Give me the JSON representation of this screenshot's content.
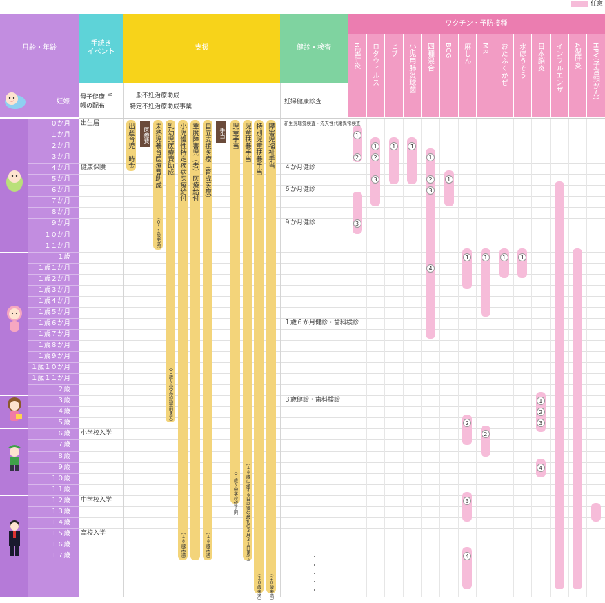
{
  "legend": {
    "label": "任意"
  },
  "headers": {
    "age": "月齢・年齢",
    "procedure": "手続き イベント",
    "support": "支援",
    "checkup": "健診・検査",
    "vaccine": "ワクチン・予防接種"
  },
  "vaccines": [
    "B型肝炎",
    "ロタウィルス",
    "ヒブ",
    "小児用肺炎球菌",
    "四種混合",
    "BCG",
    "麻しん",
    "MR",
    "おたふくかぜ",
    "水ぼうそう",
    "日本脳炎",
    "インフルエンザ",
    "A型肝炎",
    "HPV(子宮頸がん)"
  ],
  "pregnancy": {
    "label": "妊娠",
    "procedure": "母子健康 手帳の配布",
    "support1": "一般不妊治療助成",
    "support2": "特定不妊治療助成事業",
    "checkup": "妊婦健康診査"
  },
  "ages": [
    "０か月",
    "１か月",
    "２か月",
    "３か月",
    "４か月",
    "５か月",
    "６か月",
    "７か月",
    "８か月",
    "９か月",
    "１０か月",
    "１１か月",
    "１歳",
    "１歳１か月",
    "１歳２か月",
    "１歳３か月",
    "１歳４か月",
    "１歳５か月",
    "１歳６か月",
    "１歳７か月",
    "１歳８か月",
    "１歳９か月",
    "１歳１０か月",
    "１歳１１か月",
    "２歳",
    "３歳",
    "４歳",
    "５歳",
    "６歳",
    "７歳",
    "８歳",
    "９歳",
    "１０歳",
    "１１歳",
    "１２歳",
    "１３歳",
    "１４歳",
    "１５歳",
    "１６歳",
    "１７歳"
  ],
  "procedures": [
    {
      "row": 0,
      "text": "出生届"
    },
    {
      "row": 4,
      "text": "健康保険"
    },
    {
      "row": 28,
      "text": "小学校入学"
    },
    {
      "row": 34,
      "text": "中学校入学"
    },
    {
      "row": 37,
      "text": "高校入学"
    }
  ],
  "checkups": [
    {
      "row": 0,
      "text": "新生児聴覚検査・先天性代謝異常検査"
    },
    {
      "row": 4,
      "text": "４か月健診"
    },
    {
      "row": 6,
      "text": "６か月健診"
    },
    {
      "row": 9,
      "text": "９か月健診"
    },
    {
      "row": 18,
      "text": "１歳６か月健診・歯科検診"
    },
    {
      "row": 25,
      "text": "３歳健診・歯科検診"
    }
  ],
  "support_tags": {
    "medical": "医療費",
    "allowance": "手当"
  },
  "support_bars": [
    {
      "id": "s1",
      "label": "出産育児一時金",
      "note": ""
    },
    {
      "id": "s2",
      "label": "未熟児養育医療費助成",
      "note": "（０〜１歳未満）"
    },
    {
      "id": "s3",
      "label": "乳幼児医療費助成",
      "note": "（０歳〜小学校就学前まで）"
    },
    {
      "id": "s4",
      "label": "小児慢性特定疾病医療給付",
      "note": "（１８歳未満）"
    },
    {
      "id": "s5",
      "label": "重度障害児（者）医療給付",
      "note": ""
    },
    {
      "id": "s6",
      "label": "自立支援医療（育成医療）",
      "note": "（１８歳未満）"
    },
    {
      "id": "s7",
      "label": "児童手当",
      "note": "（０歳〜中学校修了前）"
    },
    {
      "id": "s8",
      "label": "児童扶養手当",
      "note": "（１８歳に達する日以後の最初の３月３１日まで）"
    },
    {
      "id": "s9",
      "label": "特別児童扶養手当",
      "note": "（２０歳未満）"
    },
    {
      "id": "s10",
      "label": "障害児福祉手当",
      "note": "（２０歳未満）"
    }
  ],
  "dots": [
    {
      "col": 0,
      "row": 1,
      "n": "1"
    },
    {
      "col": 0,
      "row": 3,
      "n": "2"
    },
    {
      "col": 0,
      "row": 9,
      "n": "3"
    },
    {
      "col": 1,
      "row": 2,
      "n": "1"
    },
    {
      "col": 1,
      "row": 3,
      "n": "2"
    },
    {
      "col": 1,
      "row": 5,
      "n": "3"
    },
    {
      "col": 2,
      "row": 2,
      "n": "1"
    },
    {
      "col": 3,
      "row": 2,
      "n": "1"
    },
    {
      "col": 4,
      "row": 3,
      "n": "1"
    },
    {
      "col": 4,
      "row": 5,
      "n": "2"
    },
    {
      "col": 4,
      "row": 6,
      "n": "3"
    },
    {
      "col": 4,
      "row": 13,
      "n": "4"
    },
    {
      "col": 5,
      "row": 5,
      "n": "1"
    },
    {
      "col": 6,
      "row": 12,
      "n": "1"
    },
    {
      "col": 6,
      "row": 27,
      "n": "2"
    },
    {
      "col": 6,
      "row": 34,
      "n": "3"
    },
    {
      "col": 6,
      "row": 39,
      "n": "4"
    },
    {
      "col": 7,
      "row": 12,
      "n": "1"
    },
    {
      "col": 7,
      "row": 28,
      "n": "2"
    },
    {
      "col": 8,
      "row": 12,
      "n": "1"
    },
    {
      "col": 9,
      "row": 12,
      "n": "1"
    },
    {
      "col": 10,
      "row": 25,
      "n": "1"
    },
    {
      "col": 10,
      "row": 26,
      "n": "2"
    },
    {
      "col": 10,
      "row": 27,
      "n": "3"
    },
    {
      "col": 10,
      "row": 31,
      "n": "4"
    }
  ],
  "colors": {
    "age_col": "#c28de0",
    "age_col_dark": "#b57ad8",
    "procedure_col": "#5ed3d8",
    "support_col": "#f7d31a",
    "checkup_col": "#7fd3a0",
    "vaccine_col": "#eb7db0",
    "vaccine_sub": "#f29cc4",
    "bar_yellow": "#f3d47a",
    "bar_pink": "#f6bcd9"
  }
}
